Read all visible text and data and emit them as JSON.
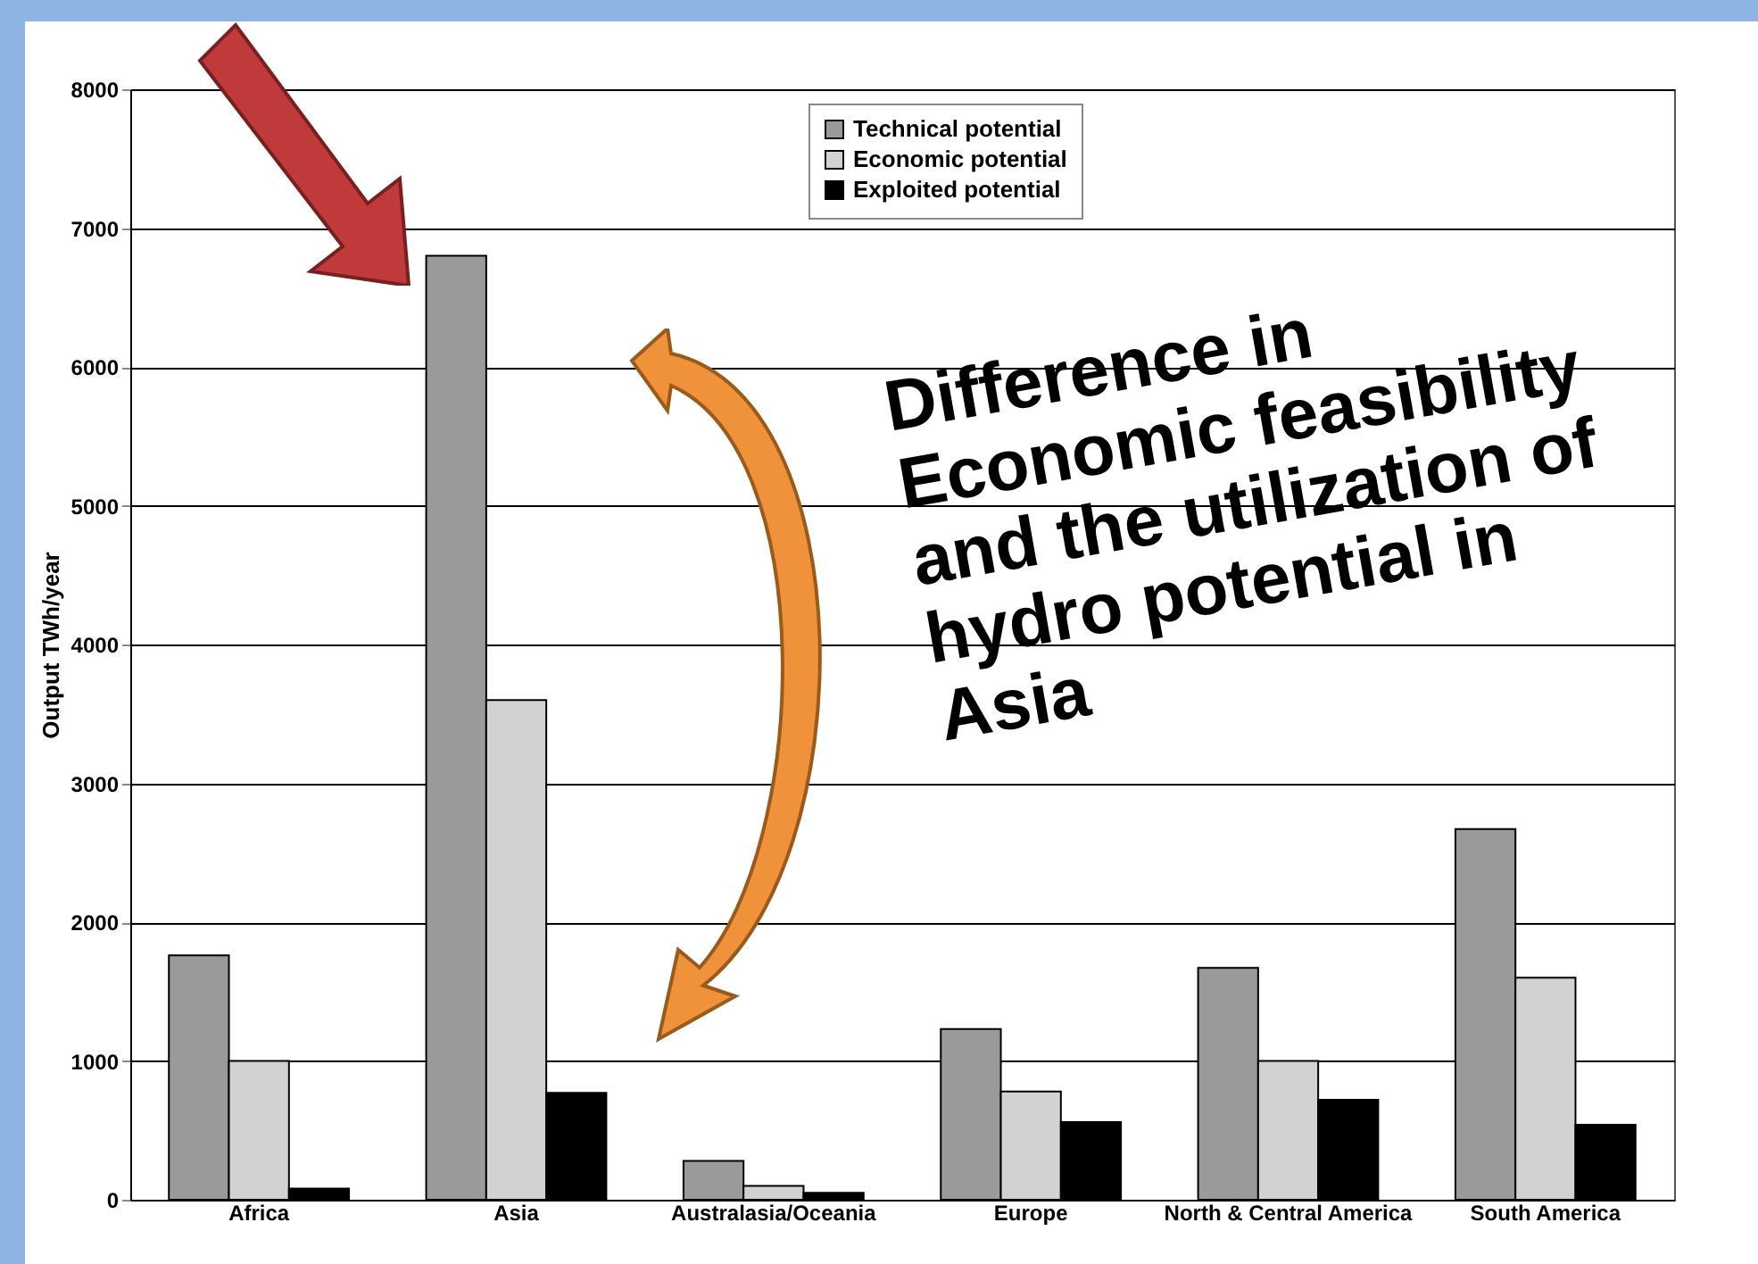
{
  "chart_data": {
    "type": "bar",
    "ylabel": "Output TWh/year",
    "categories": [
      "Africa",
      "Asia",
      "Australasia/Oceania",
      "Europe",
      "North & Central America",
      "South America"
    ],
    "series": [
      {
        "name": "Technical potential",
        "color": "#9a9a9a",
        "values": [
          1760,
          6800,
          280,
          1230,
          1670,
          2670
        ]
      },
      {
        "name": "Economic potential",
        "color": "#d2d2d2",
        "values": [
          1000,
          3600,
          100,
          780,
          1000,
          1600
        ]
      },
      {
        "name": "Exploited potential",
        "color": "#000000",
        "values": [
          80,
          770,
          50,
          560,
          720,
          540
        ]
      }
    ],
    "ylim": [
      0,
      8000
    ],
    "yticks": [
      0,
      1000,
      2000,
      3000,
      4000,
      5000,
      6000,
      7000,
      8000
    ],
    "grid": "y",
    "legend": "top",
    "annotations": [
      "Difference in\nEconomic feasibility\nand the utilization of\nhydro  potential  in\n  Asia"
    ]
  }
}
